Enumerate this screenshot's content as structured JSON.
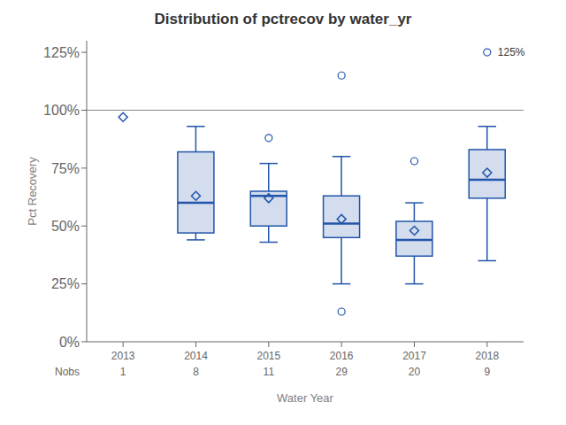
{
  "chart_data": {
    "type": "box",
    "title": "Distribution of pctrecov by water_yr",
    "xlabel": "Water Year",
    "ylabel": "Pct Recovery",
    "categories": [
      2013,
      2014,
      2015,
      2016,
      2017,
      2018
    ],
    "nobs_label": "Nobs",
    "nobs": [
      1,
      8,
      11,
      29,
      20,
      9
    ],
    "boxes": [
      {
        "q1": null,
        "median": null,
        "q3": null,
        "whislo": null,
        "whishi": null,
        "mean": 97.0,
        "fliers": []
      },
      {
        "q1": 47.0,
        "median": 60.0,
        "q3": 82.0,
        "whislo": 44.0,
        "whishi": 93.0,
        "mean": 63.0,
        "fliers": []
      },
      {
        "q1": 50.0,
        "median": 63.0,
        "q3": 65.0,
        "whislo": 43.0,
        "whishi": 77.0,
        "mean": 62.0,
        "fliers": [
          88.0
        ]
      },
      {
        "q1": 45.0,
        "median": 51.0,
        "q3": 63.0,
        "whislo": 25.0,
        "whishi": 80.0,
        "mean": 53.0,
        "fliers": [
          13.0,
          115.0
        ]
      },
      {
        "q1": 37.0,
        "median": 44.0,
        "q3": 52.0,
        "whislo": 25.0,
        "whishi": 60.0,
        "mean": 48.0,
        "fliers": [
          78.0
        ]
      },
      {
        "q1": 62.0,
        "median": 70.0,
        "q3": 83.0,
        "whislo": 35.0,
        "whishi": 93.0,
        "mean": 73.0,
        "fliers": [
          125.0
        ]
      }
    ],
    "color": "#2255aa",
    "reference_line": 100,
    "annotations": [
      {
        "text": "125%",
        "x": 2018,
        "y": 125
      }
    ],
    "ylim": [
      0,
      130
    ],
    "yticks": [
      {
        "value": 0,
        "label": "0%"
      },
      {
        "value": 25,
        "label": "25%"
      },
      {
        "value": 50,
        "label": "50%"
      },
      {
        "value": 75,
        "label": "75%"
      },
      {
        "value": 100,
        "label": "100%"
      },
      {
        "value": 125,
        "label": "125%"
      }
    ],
    "grid": false
  }
}
